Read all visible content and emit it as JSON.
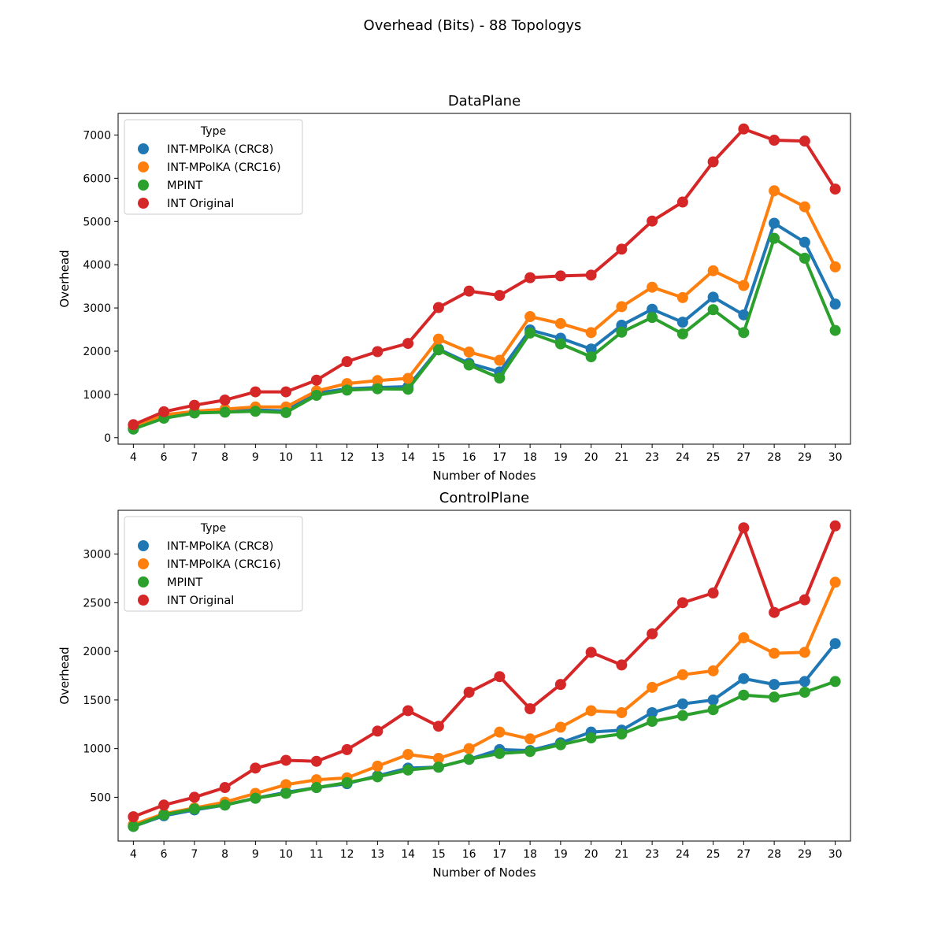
{
  "figure": {
    "suptitle": "Overhead (Bits) - 88 Topologys"
  },
  "chart_data": [
    {
      "type": "line",
      "title": "DataPlane",
      "xlabel": "Number of Nodes",
      "ylabel": "Overhead",
      "categories": [
        "4",
        "6",
        "7",
        "8",
        "9",
        "10",
        "11",
        "12",
        "13",
        "14",
        "15",
        "16",
        "17",
        "18",
        "19",
        "20",
        "21",
        "23",
        "24",
        "25",
        "27",
        "28",
        "29",
        "30"
      ],
      "ylim": [
        -150,
        7500
      ],
      "yticks": [
        0,
        1000,
        2000,
        3000,
        4000,
        5000,
        6000,
        7000
      ],
      "legend": {
        "title": "Type",
        "placement": "upper-left"
      },
      "series": [
        {
          "name": "INT-MPolKA (CRC8)",
          "color": "#1f77b4",
          "values": [
            200,
            470,
            590,
            620,
            640,
            620,
            1030,
            1130,
            1160,
            1180,
            2050,
            1720,
            1520,
            2490,
            2300,
            2050,
            2600,
            2970,
            2670,
            3250,
            2840,
            4960,
            4520,
            3090
          ]
        },
        {
          "name": "INT-MPolKA (CRC16)",
          "color": "#ff7f0e",
          "values": [
            250,
            530,
            610,
            660,
            710,
            710,
            1080,
            1250,
            1320,
            1370,
            2280,
            1980,
            1790,
            2800,
            2640,
            2430,
            3030,
            3480,
            3240,
            3860,
            3520,
            5710,
            5340,
            3950
          ]
        },
        {
          "name": "MPINT",
          "color": "#2ca02c",
          "values": [
            200,
            450,
            570,
            590,
            610,
            580,
            980,
            1100,
            1130,
            1120,
            2030,
            1680,
            1380,
            2420,
            2170,
            1870,
            2440,
            2780,
            2400,
            2960,
            2430,
            4610,
            4150,
            2480
          ]
        },
        {
          "name": "INT Original",
          "color": "#d62728",
          "values": [
            300,
            600,
            750,
            870,
            1060,
            1060,
            1330,
            1760,
            1990,
            2180,
            3010,
            3390,
            3290,
            3700,
            3740,
            3760,
            4360,
            5010,
            5450,
            6380,
            7140,
            6880,
            6860,
            5750
          ]
        }
      ]
    },
    {
      "type": "line",
      "title": "ControlPlane",
      "xlabel": "Number of Nodes",
      "ylabel": "Overhead",
      "categories": [
        "4",
        "6",
        "7",
        "8",
        "9",
        "10",
        "11",
        "12",
        "13",
        "14",
        "15",
        "16",
        "17",
        "18",
        "19",
        "20",
        "21",
        "23",
        "24",
        "25",
        "27",
        "28",
        "29",
        "30"
      ],
      "ylim": [
        50,
        3450
      ],
      "yticks": [
        500,
        1000,
        1500,
        2000,
        2500,
        3000
      ],
      "legend": {
        "title": "Type",
        "placement": "upper-left"
      },
      "series": [
        {
          "name": "INT-MPolKA (CRC8)",
          "color": "#1f77b4",
          "values": [
            200,
            310,
            370,
            420,
            490,
            550,
            600,
            640,
            720,
            800,
            810,
            890,
            990,
            980,
            1060,
            1170,
            1190,
            1370,
            1460,
            1500,
            1720,
            1660,
            1690,
            2080
          ]
        },
        {
          "name": "INT-MPolKA (CRC16)",
          "color": "#ff7f0e",
          "values": [
            220,
            330,
            390,
            450,
            540,
            630,
            680,
            700,
            820,
            940,
            900,
            1000,
            1170,
            1100,
            1220,
            1390,
            1370,
            1630,
            1760,
            1800,
            2140,
            1980,
            1990,
            2710
          ]
        },
        {
          "name": "MPINT",
          "color": "#2ca02c",
          "values": [
            200,
            320,
            380,
            420,
            490,
            540,
            600,
            650,
            710,
            780,
            810,
            890,
            950,
            970,
            1040,
            1110,
            1150,
            1280,
            1340,
            1400,
            1550,
            1530,
            1580,
            1690
          ]
        },
        {
          "name": "INT Original",
          "color": "#d62728",
          "values": [
            300,
            420,
            500,
            600,
            800,
            880,
            870,
            990,
            1180,
            1390,
            1230,
            1580,
            1740,
            1410,
            1660,
            1990,
            1860,
            2180,
            2500,
            2600,
            3270,
            2400,
            2530,
            3290
          ]
        }
      ]
    }
  ]
}
